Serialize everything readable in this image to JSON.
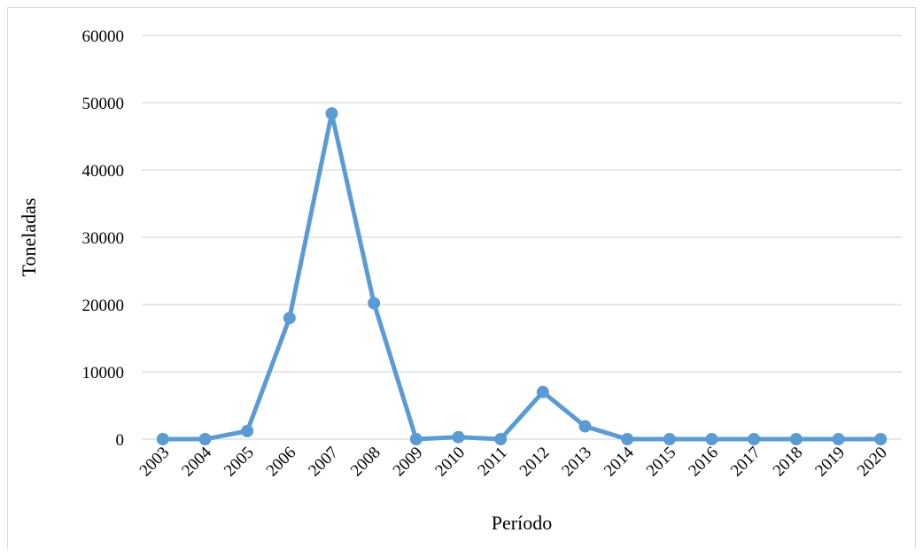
{
  "chart_data": {
    "type": "line",
    "title": "",
    "xlabel": "Período",
    "ylabel": "Toneladas",
    "ylim": [
      0,
      60000
    ],
    "yticks": [
      0,
      10000,
      20000,
      30000,
      40000,
      50000,
      60000
    ],
    "grid": true,
    "legend": "none",
    "x": [
      "2003",
      "2004",
      "2005",
      "2006",
      "2007",
      "2008",
      "2009",
      "2010",
      "2011",
      "2012",
      "2013",
      "2014",
      "2015",
      "2016",
      "2017",
      "2018",
      "2019",
      "2020"
    ],
    "series": [
      {
        "color": "#5b9bd5",
        "values": [
          0,
          0,
          1200,
          18000,
          48400,
          20200,
          0,
          300,
          0,
          7000,
          1900,
          0,
          0,
          0,
          0,
          0,
          0,
          0
        ]
      }
    ]
  }
}
